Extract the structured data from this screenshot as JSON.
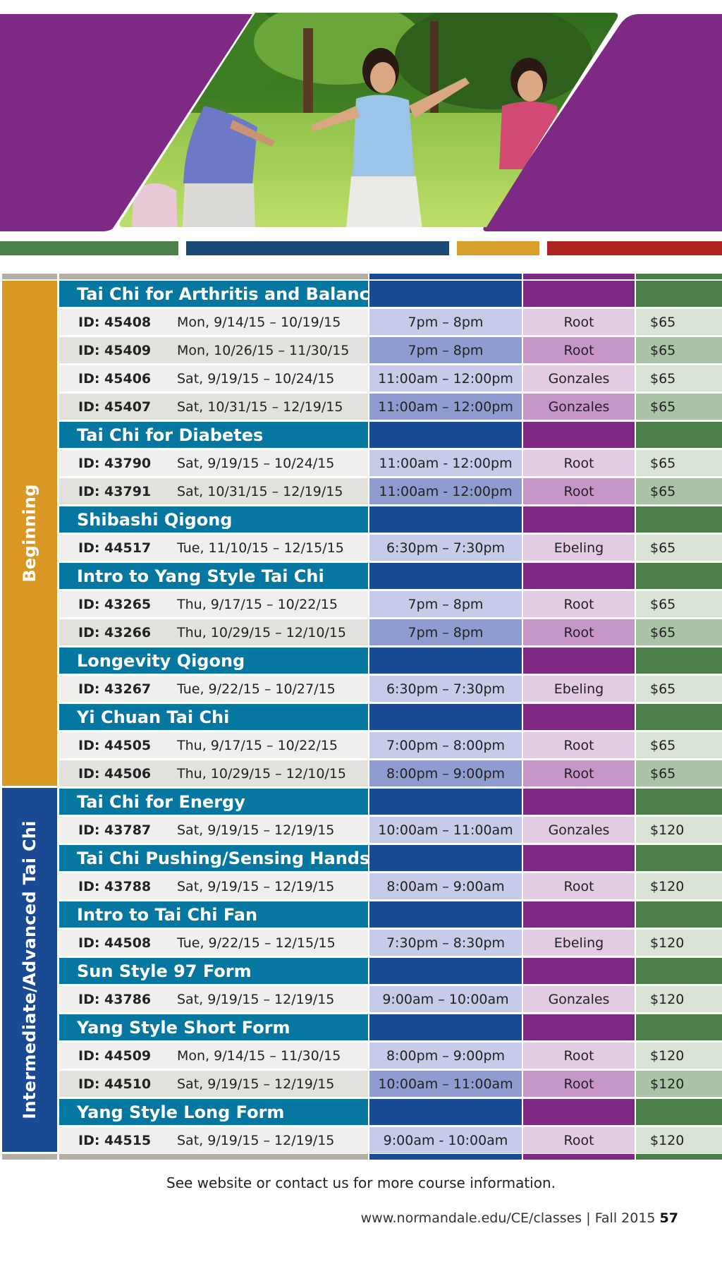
{
  "colors": {
    "purple": "#7e2a85",
    "teal_title": "#0677a1",
    "blue": "#1a4a94",
    "green": "#4b7f49",
    "gold": "#d99826"
  },
  "hero": {
    "image": "tai-chi-photo"
  },
  "sections": [
    {
      "label": "Beginning"
    },
    {
      "label": "Intermediate/Advanced Tai Chi"
    }
  ],
  "rows": [
    {
      "type": "title",
      "title": "Tai Chi for Arthritis and Balance"
    },
    {
      "type": "data",
      "id": "ID: 45408",
      "dates": "Mon,  9/14/15 – 10/19/15",
      "time": "7pm – 8pm",
      "instructor": "Root",
      "price": "$65"
    },
    {
      "type": "data",
      "id": "ID: 45409",
      "dates": "Mon, 10/26/15 – 11/30/15",
      "time": "7pm – 8pm",
      "instructor": "Root",
      "price": "$65"
    },
    {
      "type": "data",
      "id": "ID: 45406",
      "dates": "Sat, 9/19/15 – 10/24/15",
      "time": "11:00am – 12:00pm",
      "instructor": "Gonzales",
      "price": "$65"
    },
    {
      "type": "data",
      "id": "ID: 45407",
      "dates": "Sat, 10/31/15 – 12/19/15",
      "time": "11:00am – 12:00pm",
      "instructor": "Gonzales",
      "price": "$65"
    },
    {
      "type": "title",
      "title": "Tai Chi for Diabetes"
    },
    {
      "type": "data",
      "id": "ID: 43790",
      "dates": "Sat, 9/19/15 – 10/24/15",
      "time": "11:00am - 12:00pm",
      "instructor": "Root",
      "price": "$65"
    },
    {
      "type": "data",
      "id": "ID: 43791",
      "dates": "Sat, 10/31/15 – 12/19/15",
      "time": "11:00am - 12:00pm",
      "instructor": "Root",
      "price": "$65"
    },
    {
      "type": "title",
      "title": "Shibashi Qigong"
    },
    {
      "type": "data",
      "id": "ID: 44517",
      "dates": "Tue, 11/10/15 – 12/15/15",
      "time": "6:30pm – 7:30pm",
      "instructor": "Ebeling",
      "price": "$65"
    },
    {
      "type": "title",
      "title": "Intro to Yang Style Tai Chi"
    },
    {
      "type": "data",
      "id": "ID: 43265",
      "dates": "Thu, 9/17/15 – 10/22/15",
      "time": "7pm – 8pm",
      "instructor": "Root",
      "price": "$65"
    },
    {
      "type": "data",
      "id": "ID: 43266",
      "dates": "Thu, 10/29/15 – 12/10/15",
      "time": "7pm – 8pm",
      "instructor": "Root",
      "price": "$65"
    },
    {
      "type": "title",
      "title": "Longevity Qigong"
    },
    {
      "type": "data",
      "id": "ID: 43267",
      "dates": "Tue, 9/22/15 – 10/27/15",
      "time": "6:30pm – 7:30pm",
      "instructor": "Ebeling",
      "price": "$65"
    },
    {
      "type": "title",
      "title": "Yi Chuan Tai Chi"
    },
    {
      "type": "data",
      "id": "ID: 44505",
      "dates": "Thu, 9/17/15 – 10/22/15",
      "time": "7:00pm – 8:00pm",
      "instructor": "Root",
      "price": "$65"
    },
    {
      "type": "data",
      "id": "ID: 44506",
      "dates": "Thu, 10/29/15 – 12/10/15",
      "time": "8:00pm – 9:00pm",
      "instructor": "Root",
      "price": "$65"
    },
    {
      "type": "title",
      "title": "Tai Chi for Energy"
    },
    {
      "type": "data",
      "id": "ID: 43787",
      "dates": "Sat, 9/19/15 – 12/19/15",
      "time": "10:00am – 11:00am",
      "instructor": "Gonzales",
      "price": "$120"
    },
    {
      "type": "title",
      "title": "Tai Chi Pushing/Sensing Hands"
    },
    {
      "type": "data",
      "id": "ID: 43788",
      "dates": "Sat, 9/19/15 – 12/19/15",
      "time": "8:00am – 9:00am",
      "instructor": "Root",
      "price": "$120"
    },
    {
      "type": "title",
      "title": "Intro to Tai Chi Fan"
    },
    {
      "type": "data",
      "id": "ID: 44508",
      "dates": "Tue, 9/22/15 – 12/15/15",
      "time": "7:30pm – 8:30pm",
      "instructor": "Ebeling",
      "price": "$120"
    },
    {
      "type": "title",
      "title": "Sun Style 97 Form"
    },
    {
      "type": "data",
      "id": "ID: 43786",
      "dates": "Sat, 9/19/15 – 12/19/15",
      "time": "9:00am – 10:00am",
      "instructor": "Gonzales",
      "price": "$120"
    },
    {
      "type": "title",
      "title": "Yang Style Short Form"
    },
    {
      "type": "data",
      "id": "ID: 44509",
      "dates": "Mon, 9/14/15 – 11/30/15",
      "time": "8:00pm – 9:00pm",
      "instructor": "Root",
      "price": "$120"
    },
    {
      "type": "data",
      "id": "ID: 44510",
      "dates": "Sat, 9/19/15 – 12/19/15",
      "time": "10:00am – 11:00am",
      "instructor": "Root",
      "price": "$120"
    },
    {
      "type": "title",
      "title": "Yang Style Long Form"
    },
    {
      "type": "data",
      "id": "ID: 44515",
      "dates": "Sat, 9/19/15 – 12/19/15",
      "time": "9:00am - 10:00am",
      "instructor": "Root",
      "price": "$120"
    }
  ],
  "note": "See website or contact us for more course information.",
  "footer": {
    "url": "www.normandale.edu/CE/classes",
    "separator": "|",
    "term": "Fall 2015",
    "page": "57"
  }
}
